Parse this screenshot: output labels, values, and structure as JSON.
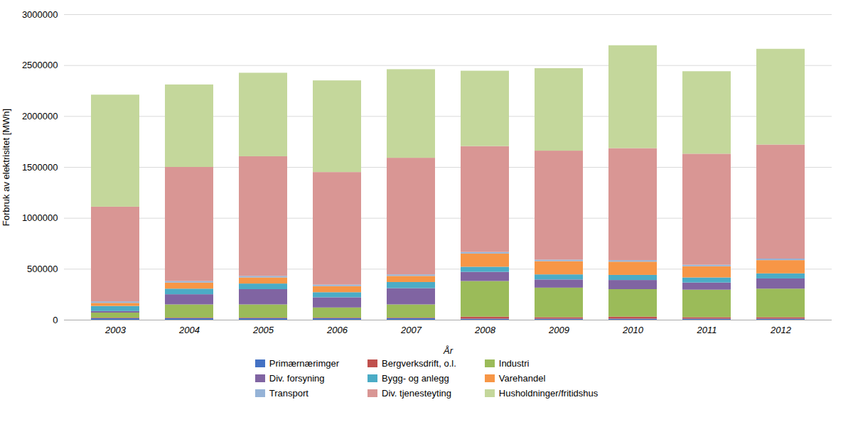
{
  "chart_data": {
    "type": "bar",
    "stacked": true,
    "xlabel": "År",
    "ylabel": "Forbruk av elektrisitet [MWh]",
    "categories": [
      "2003",
      "2004",
      "2005",
      "2006",
      "2007",
      "2008",
      "2009",
      "2010",
      "2011",
      "2012"
    ],
    "series": [
      {
        "name": "Primærnærimger",
        "color": "#4472C4",
        "values": [
          15000,
          15000,
          15000,
          15000,
          15000,
          10000,
          10000,
          10000,
          10000,
          10000
        ]
      },
      {
        "name": "Bergverksdrift, o.l.",
        "color": "#C0504D",
        "values": [
          5000,
          5000,
          5000,
          5000,
          5000,
          20000,
          15000,
          20000,
          15000,
          15000
        ]
      },
      {
        "name": "Industri",
        "color": "#9BBB59",
        "values": [
          50000,
          130000,
          130000,
          100000,
          130000,
          350000,
          290000,
          270000,
          270000,
          280000
        ]
      },
      {
        "name": "Div. forsyning",
        "color": "#8064A2",
        "values": [
          15000,
          100000,
          150000,
          100000,
          160000,
          90000,
          80000,
          90000,
          70000,
          100000
        ]
      },
      {
        "name": "Bygg- og anlegg",
        "color": "#4BACC6",
        "values": [
          50000,
          55000,
          55000,
          50000,
          60000,
          50000,
          50000,
          50000,
          50000,
          50000
        ]
      },
      {
        "name": "Varehandel",
        "color": "#F79646",
        "values": [
          30000,
          60000,
          60000,
          60000,
          60000,
          130000,
          130000,
          130000,
          110000,
          130000
        ]
      },
      {
        "name": "Transport",
        "color": "#95B3D7",
        "values": [
          15000,
          15000,
          15000,
          15000,
          15000,
          15000,
          15000,
          15000,
          15000,
          15000
        ]
      },
      {
        "name": "Div. tjenesteyting",
        "color": "#D99694",
        "values": [
          930000,
          1120000,
          1175000,
          1105000,
          1145000,
          1040000,
          1070000,
          1100000,
          1090000,
          1120000
        ]
      },
      {
        "name": "Husholdninger/fritidshus",
        "color": "#C4D79B",
        "values": [
          1100000,
          810000,
          820000,
          900000,
          870000,
          740000,
          810000,
          1010000,
          810000,
          940000
        ]
      }
    ],
    "ylim": [
      0,
      3000000
    ],
    "yticks": [
      0,
      500000,
      1000000,
      1500000,
      2000000,
      2500000,
      3000000
    ],
    "grid": true,
    "legend": "bottom"
  }
}
